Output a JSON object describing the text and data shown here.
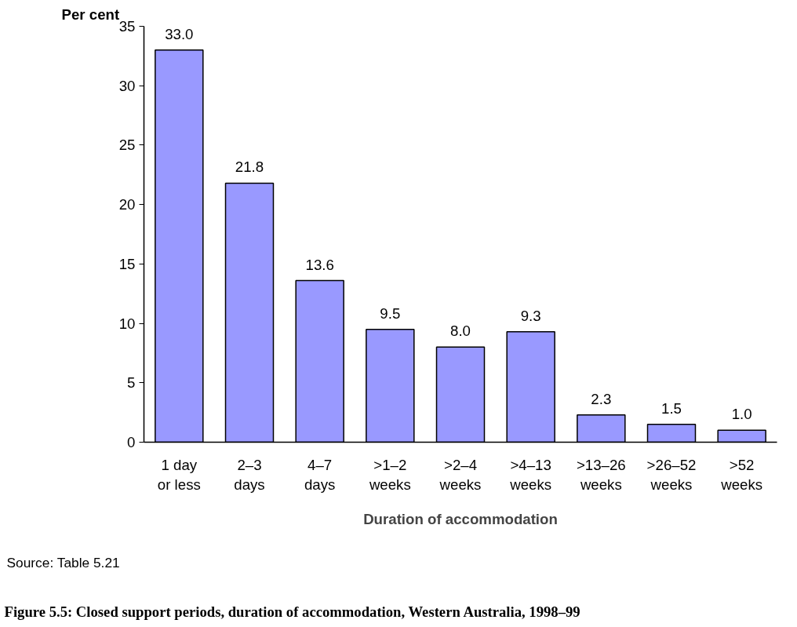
{
  "chart_data": {
    "type": "bar",
    "title": "Figure 5.5: Closed support periods, duration of accommodation, Western Australia, 1998–99",
    "xlabel": "Duration of accommodation",
    "ylabel": "Per cent",
    "categories": [
      "1 day\nor less",
      "2–3\ndays",
      "4–7\ndays",
      ">1–2\nweeks",
      ">2–4\nweeks",
      ">4–13\nweeks",
      ">13–26\nweeks",
      ">26–52\nweeks",
      ">52\nweeks"
    ],
    "values": [
      33.0,
      21.8,
      13.6,
      9.5,
      8.0,
      9.3,
      2.3,
      1.5,
      1.0
    ],
    "value_labels": [
      "33.0",
      "21.8",
      "13.6",
      "9.5",
      "8.0",
      "9.3",
      "2.3",
      "1.5",
      "1.0"
    ],
    "color": "#9999ff",
    "ylim": [
      0,
      35
    ],
    "yticks": [
      0,
      5,
      10,
      15,
      20,
      25,
      30,
      35
    ],
    "grid": false,
    "annotations": [
      "Source: Table 5.21"
    ]
  }
}
